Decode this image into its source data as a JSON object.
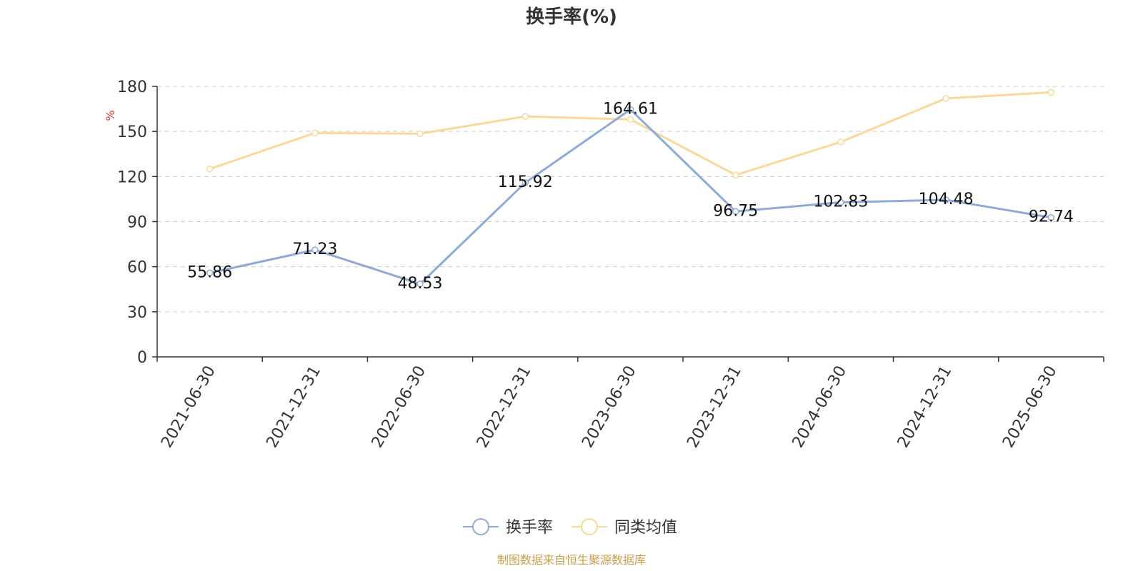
{
  "chart_data": {
    "type": "line",
    "title": "换手率(%)",
    "ylabel": "%",
    "xlabel": "",
    "ylim": [
      0,
      180
    ],
    "yticks": [
      0,
      30,
      60,
      90,
      120,
      150,
      180
    ],
    "grid": true,
    "categories": [
      "2021-06-30",
      "2021-12-31",
      "2022-06-30",
      "2022-12-31",
      "2023-06-30",
      "2023-12-31",
      "2024-06-30",
      "2024-12-31",
      "2025-06-30"
    ],
    "series": [
      {
        "name": "换手率",
        "color": "#8daad8",
        "values": [
          55.86,
          71.23,
          48.53,
          115.92,
          164.61,
          96.75,
          102.83,
          104.48,
          92.74
        ],
        "labels": [
          "55.86",
          "71.23",
          "48.53",
          "115.92",
          "164.61",
          "96.75",
          "102.83",
          "104.48",
          "92.74"
        ],
        "show_labels": true
      },
      {
        "name": "同类均值",
        "color": "#f9d99a",
        "values": [
          125,
          149,
          148.5,
          160,
          158,
          121,
          143,
          172,
          176
        ],
        "show_labels": false
      }
    ],
    "legend_position": "bottom",
    "source_note": "制图数据来自恒生聚源数据库"
  },
  "colors": {
    "title": "#333333",
    "axis": "#333333",
    "grid": "#cccccc",
    "ylabel": "#e53935",
    "source": "#c8a04a"
  }
}
